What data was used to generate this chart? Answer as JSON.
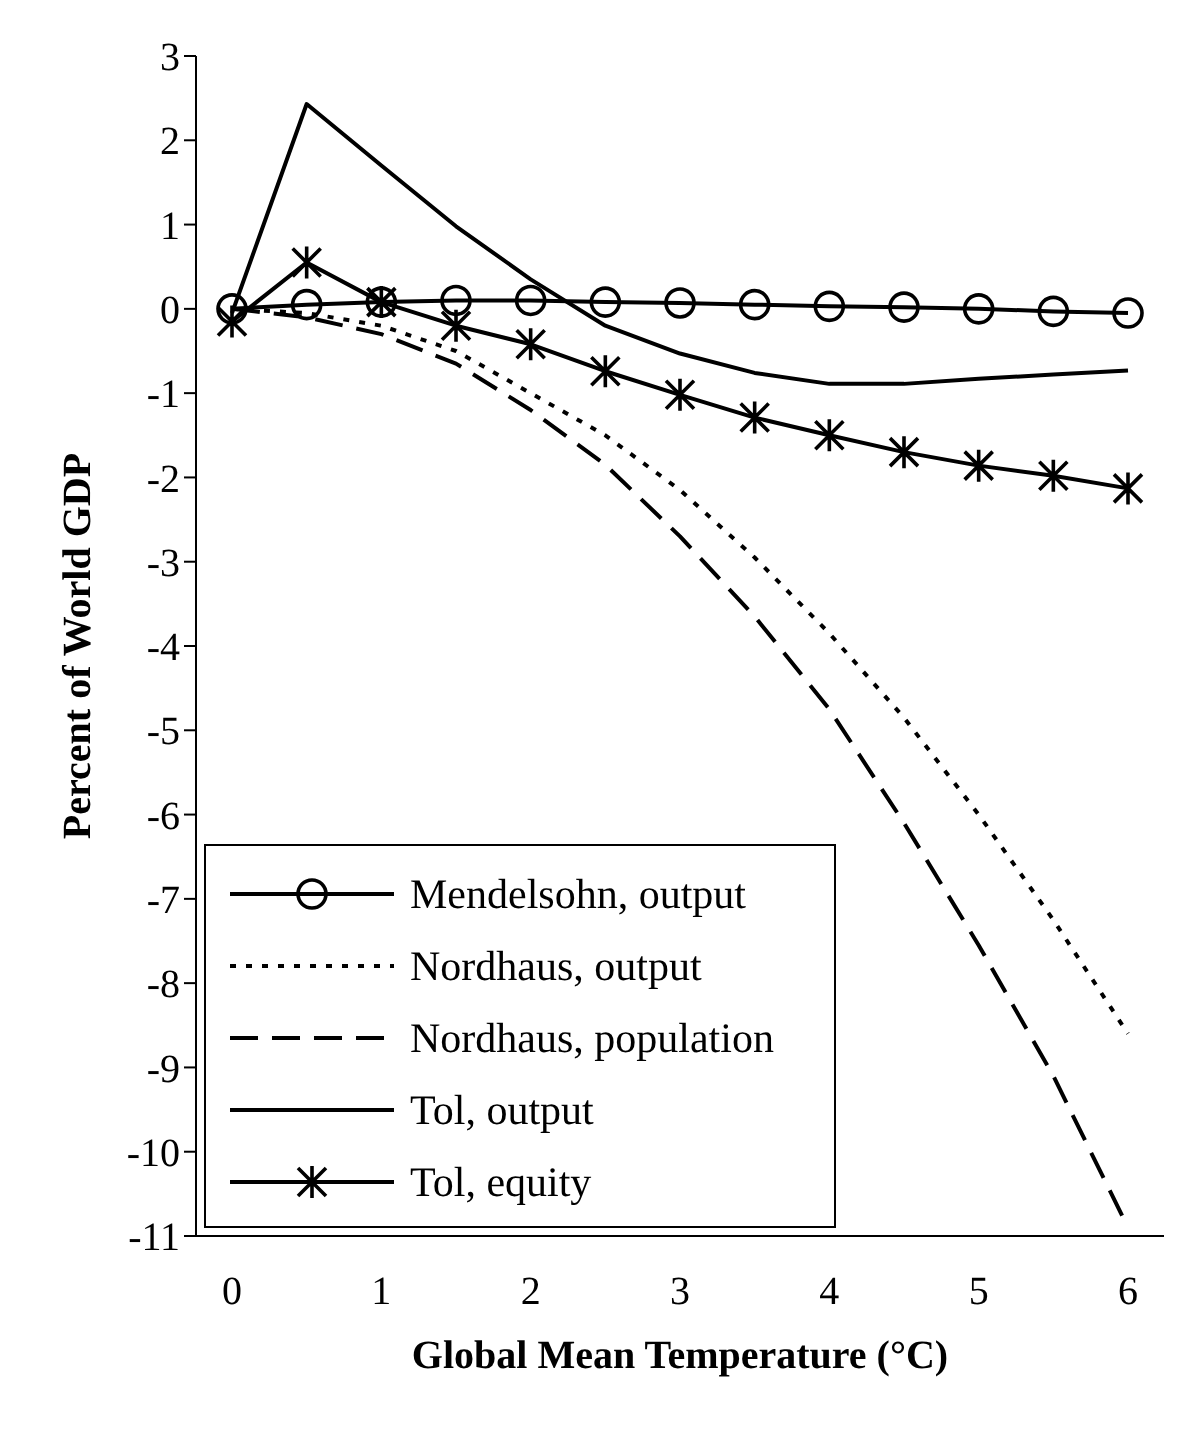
{
  "chart_data": {
    "type": "line",
    "xlabel": "Global Mean Temperature (°C)",
    "ylabel": "Percent of World GDP",
    "categories": [
      "0",
      null,
      "1",
      null,
      "2",
      null,
      "3",
      null,
      "4",
      null,
      "5",
      null,
      "6"
    ],
    "ylim": [
      -11,
      3
    ],
    "yticks": [
      3,
      2,
      1,
      0,
      -1,
      -2,
      -3,
      -4,
      -5,
      -6,
      -7,
      -8,
      -9,
      -10,
      -11
    ],
    "grid": false,
    "legend": "bottom left",
    "series": [
      {
        "name": "Mendelsohn, output",
        "color": "#000000",
        "marker": "circle",
        "line_style": "solid",
        "values": [
          0,
          0.05,
          0.08,
          0.1,
          0.1,
          0.08,
          0.07,
          0.05,
          0.03,
          0.02,
          0,
          -0.03,
          -0.05
        ]
      },
      {
        "name": "Nordhaus, output",
        "color": "#000000",
        "marker": "none",
        "line_style": "dotted",
        "values": [
          0,
          -0.05,
          -0.2,
          -0.5,
          -1.0,
          -1.5,
          -2.15,
          -2.95,
          -3.85,
          -4.85,
          -6.0,
          -7.25,
          -8.6
        ]
      },
      {
        "name": "Nordhaus, population",
        "color": "#000000",
        "marker": "none",
        "line_style": "dashed",
        "values": [
          0,
          -0.1,
          -0.3,
          -0.65,
          -1.2,
          -1.85,
          -2.7,
          -3.65,
          -4.75,
          -6.1,
          -7.55,
          -9.1,
          -10.9
        ]
      },
      {
        "name": "Tol, output",
        "color": "#000000",
        "marker": "none",
        "line_style": "solid",
        "values": [
          -0.05,
          2.43,
          1.7,
          0.98,
          0.35,
          -0.2,
          -0.53,
          -0.76,
          -0.89,
          -0.89,
          -0.83,
          -0.78,
          -0.73
        ]
      },
      {
        "name": "Tol, equity",
        "color": "#000000",
        "marker": "cross",
        "line_style": "solid",
        "values": [
          -0.15,
          0.55,
          0.08,
          -0.2,
          -0.42,
          -0.74,
          -1.02,
          -1.29,
          -1.5,
          -1.7,
          -1.86,
          -1.98,
          -2.13
        ]
      }
    ]
  }
}
